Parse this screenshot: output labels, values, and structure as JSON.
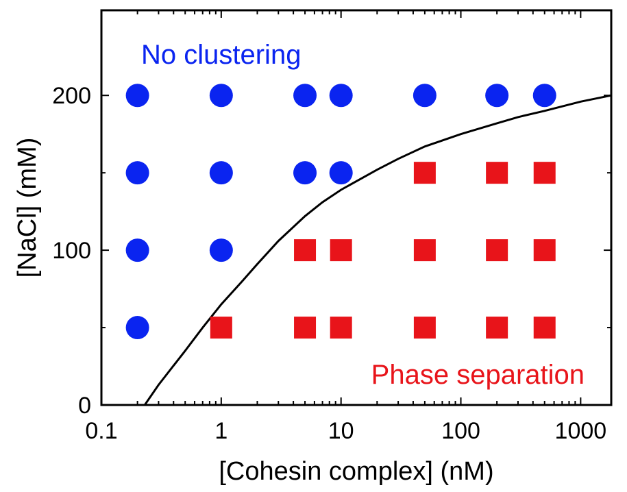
{
  "chart_data": {
    "type": "scatter",
    "title": "",
    "xlabel": "[Cohesin complex] (nM)",
    "ylabel": "[NaCl] (mM)",
    "xscale": "log",
    "xlim": [
      0.1,
      1800
    ],
    "ylim": [
      0,
      255
    ],
    "xticks": [
      {
        "value": 0.1,
        "label": "0.1"
      },
      {
        "value": 1,
        "label": "1"
      },
      {
        "value": 10,
        "label": "10"
      },
      {
        "value": 100,
        "label": "100"
      },
      {
        "value": 1000,
        "label": "1000"
      }
    ],
    "yticks": [
      {
        "value": 0,
        "label": "0"
      },
      {
        "value": 100,
        "label": "100"
      },
      {
        "value": 200,
        "label": "200"
      }
    ],
    "yminor": [
      50,
      150
    ],
    "series": [
      {
        "marker": "circle",
        "color": "#0a24f0",
        "points": [
          [
            0.2,
            200
          ],
          [
            1,
            200
          ],
          [
            5,
            200
          ],
          [
            10,
            200
          ],
          [
            50,
            200
          ],
          [
            200,
            200
          ],
          [
            500,
            200
          ],
          [
            0.2,
            150
          ],
          [
            1,
            150
          ],
          [
            5,
            150
          ],
          [
            10,
            150
          ],
          [
            0.2,
            100
          ],
          [
            1,
            100
          ],
          [
            0.2,
            50
          ]
        ]
      },
      {
        "marker": "square",
        "color": "#e8141a",
        "points": [
          [
            50,
            150
          ],
          [
            200,
            150
          ],
          [
            500,
            150
          ],
          [
            5,
            100
          ],
          [
            10,
            100
          ],
          [
            50,
            100
          ],
          [
            200,
            100
          ],
          [
            500,
            100
          ],
          [
            1,
            50
          ],
          [
            5,
            50
          ],
          [
            10,
            50
          ],
          [
            50,
            50
          ],
          [
            200,
            50
          ],
          [
            500,
            50
          ]
        ]
      }
    ],
    "boundary_curve": {
      "color": "#000000",
      "points": [
        [
          0.23,
          0
        ],
        [
          0.3,
          13
        ],
        [
          0.5,
          35
        ],
        [
          0.7,
          50
        ],
        [
          1,
          65
        ],
        [
          1.5,
          80
        ],
        [
          2,
          91
        ],
        [
          3,
          106
        ],
        [
          5,
          122
        ],
        [
          7,
          131
        ],
        [
          10,
          139
        ],
        [
          20,
          152
        ],
        [
          30,
          159
        ],
        [
          50,
          167
        ],
        [
          100,
          175
        ],
        [
          200,
          182
        ],
        [
          300,
          186
        ],
        [
          500,
          190
        ],
        [
          1000,
          196
        ],
        [
          1800,
          200
        ]
      ]
    },
    "annotations": [
      {
        "text": "No clustering",
        "color": "#0a24f0"
      },
      {
        "text": "Phase separation",
        "color": "#e8141a"
      }
    ]
  }
}
